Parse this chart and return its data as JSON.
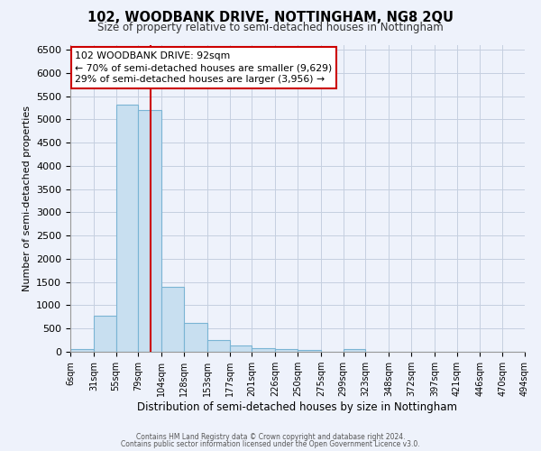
{
  "title": "102, WOODBANK DRIVE, NOTTINGHAM, NG8 2QU",
  "subtitle": "Size of property relative to semi-detached houses in Nottingham",
  "xlabel": "Distribution of semi-detached houses by size in Nottingham",
  "ylabel": "Number of semi-detached properties",
  "bar_color": "#c8dff0",
  "bar_edge_color": "#7ab4d4",
  "grid_color": "#c5cfe0",
  "background_color": "#eef2fb",
  "vline_x": 92,
  "vline_color": "#cc0000",
  "annotation_title": "102 WOODBANK DRIVE: 92sqm",
  "annotation_line1": "← 70% of semi-detached houses are smaller (9,629)",
  "annotation_line2": "29% of semi-detached houses are larger (3,956) →",
  "annotation_box_facecolor": "#ffffff",
  "annotation_box_edgecolor": "#cc0000",
  "bins": [
    6,
    31,
    55,
    79,
    104,
    128,
    153,
    177,
    201,
    226,
    250,
    275,
    299,
    323,
    348,
    372,
    397,
    421,
    446,
    470,
    494
  ],
  "values": [
    50,
    780,
    5310,
    5200,
    1400,
    620,
    260,
    130,
    85,
    60,
    45,
    0,
    55,
    0,
    0,
    0,
    0,
    0,
    0,
    0
  ],
  "ylim": [
    0,
    6600
  ],
  "yticks": [
    0,
    500,
    1000,
    1500,
    2000,
    2500,
    3000,
    3500,
    4000,
    4500,
    5000,
    5500,
    6000,
    6500
  ],
  "footer_line1": "Contains HM Land Registry data © Crown copyright and database right 2024.",
  "footer_line2": "Contains public sector information licensed under the Open Government Licence v3.0."
}
